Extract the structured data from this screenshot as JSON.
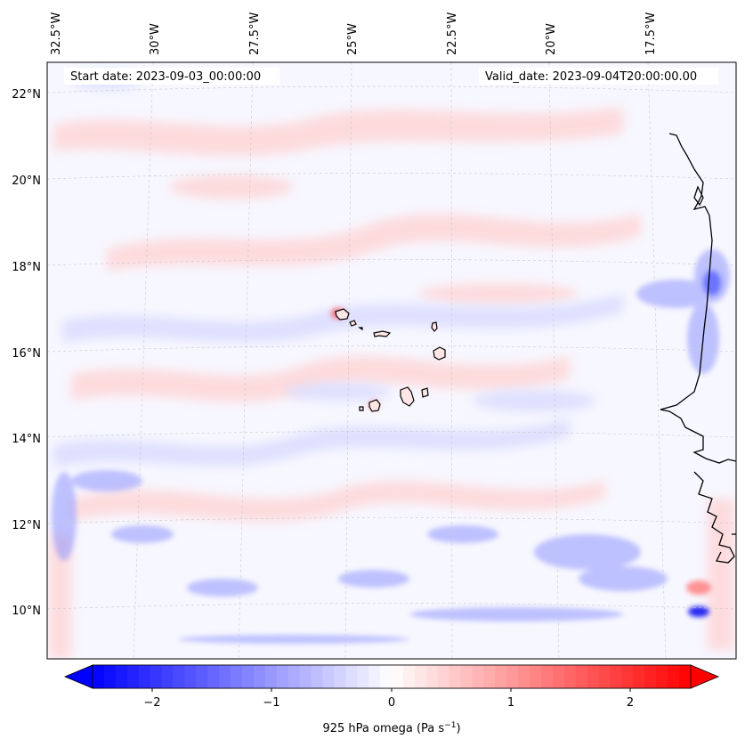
{
  "map": {
    "start_date": "Start date: 2023-09-03_00:00:00",
    "valid_date": "Valid_date: 2023-09-04T20:00:00.00",
    "lon_labels": [
      "32.5°W",
      "30°W",
      "27.5°W",
      "25°W",
      "22.5°W",
      "20°W",
      "17.5°W"
    ],
    "lat_labels": [
      "22°N",
      "20°N",
      "18°N",
      "16°N",
      "14°N",
      "12°N",
      "10°N"
    ]
  },
  "colorbar": {
    "ticks": [
      "−2",
      "−1",
      "0",
      "1",
      "2"
    ],
    "label_main": "925 hPa omega (Pa s",
    "label_sup": "−1",
    "label_end": ")",
    "range": [
      -2.6,
      2.6
    ],
    "colormap": "bwr",
    "low_color": "#0000ff",
    "mid_color": "#ffffff",
    "high_color": "#ff0000"
  },
  "colors": {
    "coastline": "#000000",
    "gridline": "#c8c8c8"
  }
}
